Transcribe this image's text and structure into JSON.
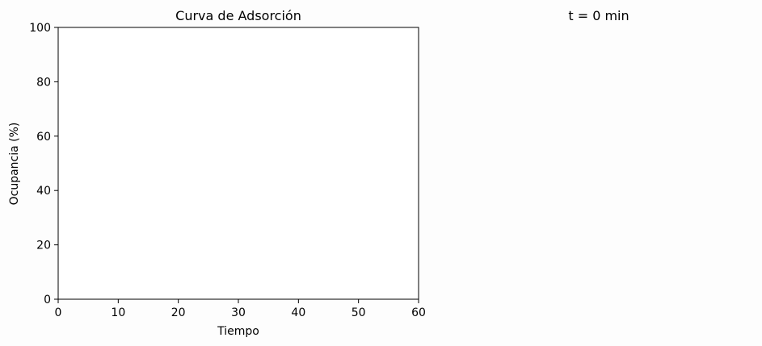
{
  "chart_data": {
    "type": "line",
    "title": "Curva de Adsorción",
    "xlabel": "Tiempo",
    "ylabel": "Ocupancia (%)",
    "xlim": [
      0,
      60
    ],
    "ylim": [
      0,
      100
    ],
    "xticks": [
      "0",
      "10",
      "20",
      "30",
      "40",
      "50",
      "60"
    ],
    "yticks": [
      "0",
      "20",
      "40",
      "60",
      "80",
      "100"
    ],
    "grid": false,
    "series": []
  },
  "right_panel": {
    "title": "t = 0 min"
  }
}
